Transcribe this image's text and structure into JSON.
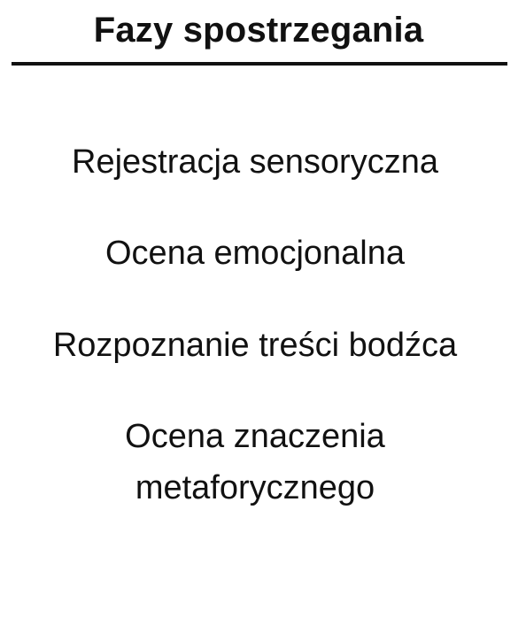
{
  "title": "Fazy spostrzegania",
  "phases": [
    {
      "lines": [
        "Rejestracja sensoryczna"
      ]
    },
    {
      "lines": [
        "Ocena emocjonalna"
      ]
    },
    {
      "lines": [
        "Rozpoznanie treści bodźca"
      ]
    },
    {
      "lines": [
        "Ocena znaczenia",
        "metaforycznego"
      ]
    }
  ],
  "colors": {
    "text": "#111111",
    "background": "#ffffff",
    "rule": "#111111"
  }
}
